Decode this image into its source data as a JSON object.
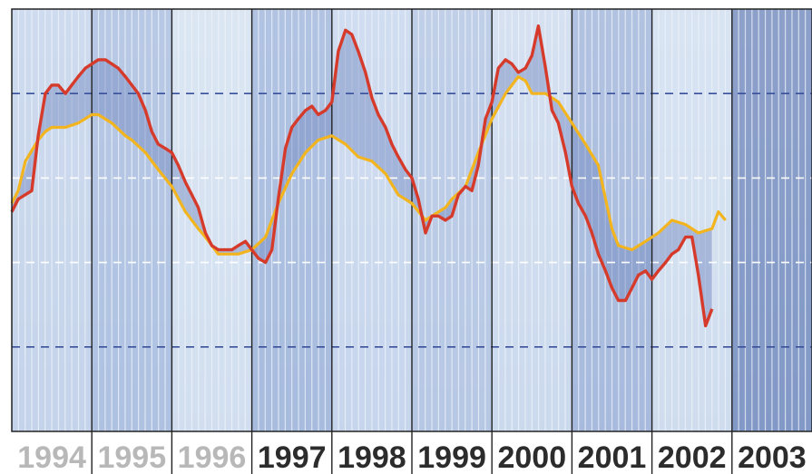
{
  "chart_data": {
    "type": "line",
    "title": "",
    "xlabel": "",
    "ylabel": "",
    "categories": [
      "1994",
      "1995",
      "1996",
      "1997",
      "1998",
      "1999",
      "2000",
      "2001",
      "2002",
      "2003"
    ],
    "x_range": [
      1994.0,
      2004.0
    ],
    "y_range": [
      0,
      100
    ],
    "grid": "horizontal dashed reference lines",
    "series": [
      {
        "color": "#d63a2b",
        "points": [
          [
            1994.0,
            52
          ],
          [
            1994.08,
            55
          ],
          [
            1994.25,
            57
          ],
          [
            1994.33,
            70
          ],
          [
            1994.42,
            80
          ],
          [
            1994.5,
            82
          ],
          [
            1994.58,
            82
          ],
          [
            1994.67,
            80
          ],
          [
            1994.75,
            82
          ],
          [
            1994.83,
            84
          ],
          [
            1994.92,
            86
          ],
          [
            1995.0,
            87
          ],
          [
            1995.08,
            88
          ],
          [
            1995.17,
            88
          ],
          [
            1995.25,
            87
          ],
          [
            1995.33,
            86
          ],
          [
            1995.42,
            84
          ],
          [
            1995.5,
            82
          ],
          [
            1995.58,
            80
          ],
          [
            1995.67,
            76
          ],
          [
            1995.75,
            71
          ],
          [
            1995.83,
            68
          ],
          [
            1995.92,
            67
          ],
          [
            1996.0,
            66
          ],
          [
            1996.08,
            63
          ],
          [
            1996.17,
            59
          ],
          [
            1996.25,
            56
          ],
          [
            1996.33,
            53
          ],
          [
            1996.42,
            47
          ],
          [
            1996.5,
            44
          ],
          [
            1996.58,
            43
          ],
          [
            1996.67,
            43
          ],
          [
            1996.75,
            43
          ],
          [
            1996.83,
            44
          ],
          [
            1996.92,
            45
          ],
          [
            1997.0,
            43
          ],
          [
            1997.08,
            41
          ],
          [
            1997.17,
            40
          ],
          [
            1997.25,
            43
          ],
          [
            1997.33,
            55
          ],
          [
            1997.42,
            67
          ],
          [
            1997.5,
            72
          ],
          [
            1997.58,
            74
          ],
          [
            1997.67,
            76
          ],
          [
            1997.75,
            77
          ],
          [
            1997.83,
            75
          ],
          [
            1997.92,
            76
          ],
          [
            1998.0,
            78
          ],
          [
            1998.08,
            90
          ],
          [
            1998.17,
            95
          ],
          [
            1998.25,
            94
          ],
          [
            1998.33,
            90
          ],
          [
            1998.42,
            85
          ],
          [
            1998.5,
            79
          ],
          [
            1998.58,
            75
          ],
          [
            1998.67,
            72
          ],
          [
            1998.75,
            68
          ],
          [
            1998.83,
            65
          ],
          [
            1998.92,
            62
          ],
          [
            1999.0,
            60
          ],
          [
            1999.08,
            55
          ],
          [
            1999.17,
            47
          ],
          [
            1999.25,
            51
          ],
          [
            1999.33,
            51
          ],
          [
            1999.42,
            50
          ],
          [
            1999.5,
            51
          ],
          [
            1999.58,
            56
          ],
          [
            1999.67,
            58
          ],
          [
            1999.75,
            57
          ],
          [
            1999.83,
            63
          ],
          [
            1999.92,
            74
          ],
          [
            2000.0,
            78
          ],
          [
            2000.08,
            86
          ],
          [
            2000.17,
            88
          ],
          [
            2000.25,
            87
          ],
          [
            2000.33,
            85
          ],
          [
            2000.42,
            86
          ],
          [
            2000.5,
            89
          ],
          [
            2000.58,
            96
          ],
          [
            2000.67,
            86
          ],
          [
            2000.75,
            76
          ],
          [
            2000.83,
            73
          ],
          [
            2000.92,
            66
          ],
          [
            2001.0,
            58
          ],
          [
            2001.08,
            54
          ],
          [
            2001.17,
            51
          ],
          [
            2001.25,
            47
          ],
          [
            2001.33,
            42
          ],
          [
            2001.42,
            38
          ],
          [
            2001.5,
            34
          ],
          [
            2001.58,
            31
          ],
          [
            2001.67,
            31
          ],
          [
            2001.75,
            34
          ],
          [
            2001.83,
            37
          ],
          [
            2001.92,
            38
          ],
          [
            2002.0,
            36
          ],
          [
            2002.08,
            38
          ],
          [
            2002.17,
            40
          ],
          [
            2002.25,
            42
          ],
          [
            2002.33,
            43
          ],
          [
            2002.42,
            46
          ],
          [
            2002.5,
            46
          ],
          [
            2002.58,
            37
          ],
          [
            2002.67,
            25
          ],
          [
            2002.75,
            29
          ]
        ]
      },
      {
        "color": "#f2b51f",
        "points": [
          [
            1994.0,
            54
          ],
          [
            1994.08,
            57
          ],
          [
            1994.17,
            64
          ],
          [
            1994.33,
            69
          ],
          [
            1994.42,
            71
          ],
          [
            1994.5,
            72
          ],
          [
            1994.67,
            72
          ],
          [
            1994.83,
            73
          ],
          [
            1995.0,
            75
          ],
          [
            1995.08,
            75
          ],
          [
            1995.25,
            73
          ],
          [
            1995.42,
            70
          ],
          [
            1995.5,
            69
          ],
          [
            1995.67,
            66
          ],
          [
            1995.83,
            62
          ],
          [
            1996.0,
            58
          ],
          [
            1996.17,
            52
          ],
          [
            1996.33,
            48
          ],
          [
            1996.42,
            46
          ],
          [
            1996.5,
            44
          ],
          [
            1996.58,
            42
          ],
          [
            1996.67,
            42
          ],
          [
            1996.83,
            42
          ],
          [
            1997.0,
            43
          ],
          [
            1997.17,
            46
          ],
          [
            1997.33,
            54
          ],
          [
            1997.5,
            61
          ],
          [
            1997.67,
            66
          ],
          [
            1997.83,
            69
          ],
          [
            1998.0,
            70
          ],
          [
            1998.17,
            68
          ],
          [
            1998.33,
            65
          ],
          [
            1998.5,
            64
          ],
          [
            1998.67,
            61
          ],
          [
            1998.83,
            56
          ],
          [
            1999.0,
            54
          ],
          [
            1999.17,
            50
          ],
          [
            1999.25,
            51
          ],
          [
            1999.42,
            53
          ],
          [
            1999.5,
            55
          ],
          [
            1999.67,
            58
          ],
          [
            1999.83,
            66
          ],
          [
            2000.0,
            74
          ],
          [
            2000.17,
            80
          ],
          [
            2000.33,
            84
          ],
          [
            2000.42,
            83
          ],
          [
            2000.5,
            80
          ],
          [
            2000.67,
            80
          ],
          [
            2000.83,
            78
          ],
          [
            2001.0,
            73
          ],
          [
            2001.17,
            68
          ],
          [
            2001.33,
            63
          ],
          [
            2001.5,
            48
          ],
          [
            2001.58,
            44
          ],
          [
            2001.75,
            43
          ],
          [
            2001.92,
            45
          ],
          [
            2002.08,
            47
          ],
          [
            2002.25,
            50
          ],
          [
            2002.42,
            49
          ],
          [
            2002.58,
            47
          ],
          [
            2002.75,
            48
          ],
          [
            2002.83,
            52
          ],
          [
            2002.92,
            50
          ]
        ]
      }
    ]
  },
  "colors": {
    "axis_label_light": "#b8b8b8",
    "axis_label_dark": "#2c2c2c",
    "gridline_blue": "#3a4f9a",
    "gridline_white": "#ffffff",
    "red_line": "#d63a2b",
    "gold_line": "#f2b51f"
  }
}
